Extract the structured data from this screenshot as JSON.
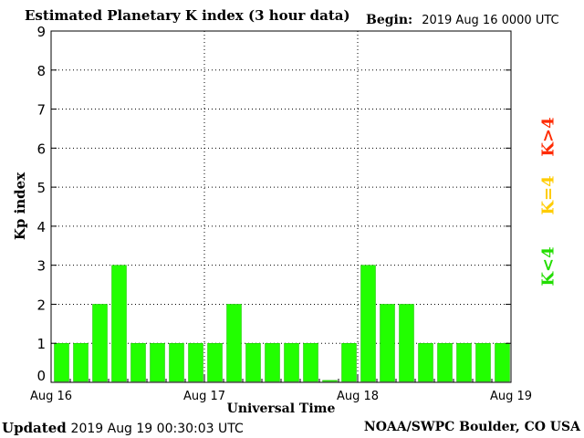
{
  "header": {
    "title": "Estimated Planetary K index (3 hour data)",
    "begin_label": "Begin:",
    "begin_value": "2019 Aug 16 0000 UTC"
  },
  "footer": {
    "updated_label": "Updated",
    "updated_value": "2019 Aug 19 00:30:03 UTC",
    "credit": "NOAA/SWPC Boulder, CO USA"
  },
  "legend": {
    "high": "K>4",
    "equal": "K=4",
    "low": "K<4"
  },
  "colors": {
    "bar": "#22ff00",
    "bar_edge": "#1ab800",
    "k_high": "#ff2a00",
    "k_equal": "#ffcc00",
    "k_low": "#22dd00",
    "grid": "#000000"
  },
  "chart_data": {
    "type": "bar",
    "title": "Estimated Planetary K index (3 hour data)",
    "xlabel": "Universal Time",
    "ylabel": "Kp index",
    "ylim": [
      0,
      9
    ],
    "yticks": [
      "0",
      "1",
      "2",
      "3",
      "4",
      "5",
      "6",
      "7",
      "8",
      "9"
    ],
    "grid": true,
    "x_tick_labels": [
      "Aug 16",
      "Aug 17",
      "Aug 18",
      "Aug 19"
    ],
    "interval_hours": 3,
    "values": [
      1,
      1,
      2,
      3,
      1,
      1,
      1,
      1,
      1,
      2,
      1,
      1,
      1,
      1,
      0.05,
      1,
      3,
      2,
      2,
      1,
      1,
      1,
      1,
      1
    ]
  }
}
